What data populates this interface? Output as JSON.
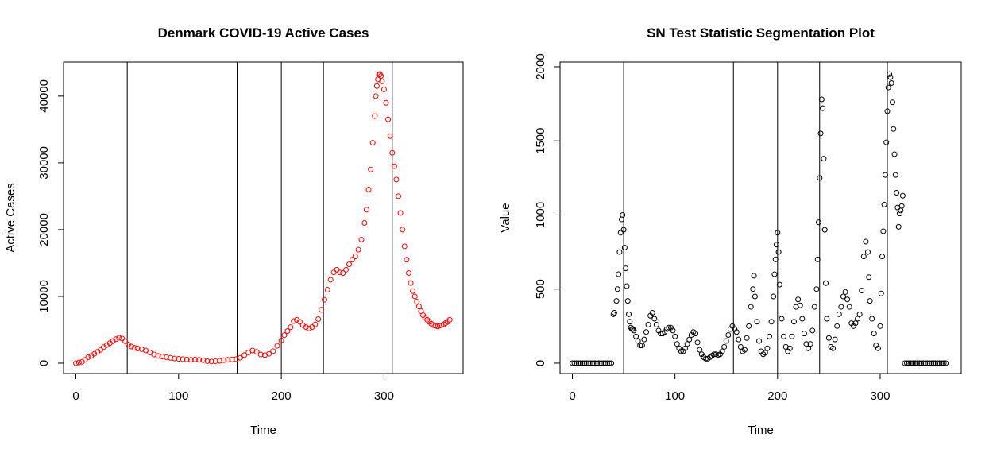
{
  "chart_data": [
    {
      "type": "scatter",
      "title": "Denmark COVID-19 Active Cases",
      "x_label": "Time",
      "y_label": "Active Cases",
      "color": "#ff0000",
      "xlim": [
        -12,
        377
      ],
      "ylim": [
        -1550,
        45100
      ],
      "xticks": [
        0,
        100,
        200,
        300
      ],
      "yticks": [
        0,
        10000,
        20000,
        30000,
        40000
      ],
      "changepoints": [
        50,
        157,
        200,
        241,
        308
      ],
      "x": [
        0,
        3,
        6,
        9,
        12,
        15,
        18,
        21,
        24,
        27,
        30,
        33,
        36,
        39,
        42,
        45,
        48,
        51,
        54,
        57,
        60,
        64,
        68,
        72,
        76,
        80,
        84,
        88,
        92,
        96,
        100,
        104,
        108,
        112,
        116,
        120,
        124,
        128,
        132,
        136,
        140,
        144,
        148,
        152,
        156,
        160,
        164,
        168,
        172,
        176,
        180,
        184,
        188,
        192,
        196,
        200,
        203,
        206,
        209,
        212,
        215,
        218,
        221,
        224,
        227,
        230,
        233,
        236,
        239,
        242,
        245,
        248,
        251,
        254,
        257,
        260,
        263,
        266,
        269,
        272,
        275,
        278,
        281,
        283,
        285,
        287,
        289,
        291,
        292,
        293,
        294,
        295,
        296,
        297,
        298,
        300,
        302,
        304,
        306,
        308,
        310,
        312,
        314,
        316,
        318,
        320,
        322,
        324,
        326,
        328,
        330,
        332,
        334,
        336,
        338,
        340,
        342,
        344,
        346,
        348,
        350,
        352,
        354,
        356,
        358,
        360,
        362,
        364
      ],
      "values": [
        0,
        100,
        200,
        500,
        900,
        1100,
        1400,
        1700,
        2000,
        2400,
        2700,
        3000,
        3300,
        3600,
        3800,
        3700,
        3300,
        2800,
        2500,
        2300,
        2200,
        2100,
        1900,
        1600,
        1300,
        1100,
        1000,
        900,
        800,
        700,
        650,
        600,
        550,
        500,
        550,
        500,
        450,
        300,
        250,
        300,
        350,
        450,
        500,
        550,
        600,
        800,
        1200,
        1600,
        1900,
        1700,
        1300,
        1200,
        1400,
        1800,
        2600,
        3400,
        4200,
        4800,
        5400,
        6300,
        6500,
        6200,
        5700,
        5400,
        5200,
        5400,
        5800,
        6600,
        8000,
        9500,
        11000,
        12500,
        13600,
        14000,
        13600,
        13500,
        14000,
        14800,
        15500,
        16000,
        17000,
        18500,
        21000,
        23000,
        26000,
        29000,
        33000,
        37000,
        40000,
        41500,
        42500,
        43200,
        43300,
        43000,
        42200,
        41000,
        39000,
        36500,
        34000,
        31500,
        29500,
        27500,
        25000,
        22500,
        20000,
        17500,
        15500,
        13500,
        12000,
        10800,
        10000,
        9200,
        8500,
        7800,
        7200,
        6800,
        6500,
        6200,
        5900,
        5700,
        5600,
        5500,
        5600,
        5700,
        5800,
        6000,
        6200,
        6500
      ]
    },
    {
      "type": "scatter",
      "title": "SN Test Statistic Segmentation Plot",
      "x_label": "Time",
      "y_label": "Value",
      "color": "#000000",
      "xlim": [
        -12,
        379
      ],
      "ylim": [
        -70,
        2032
      ],
      "xticks": [
        0,
        100,
        200,
        300
      ],
      "yticks": [
        0,
        500,
        1000,
        1500,
        2000
      ],
      "changepoints": [
        50,
        157,
        200,
        241,
        307
      ],
      "x": [
        0,
        2,
        4,
        6,
        8,
        10,
        12,
        14,
        16,
        18,
        20,
        22,
        24,
        26,
        28,
        30,
        32,
        34,
        36,
        38,
        40,
        41,
        43,
        44,
        45,
        46,
        47,
        48,
        49,
        50,
        51,
        52,
        53,
        54,
        55,
        56,
        57,
        58,
        59,
        60,
        62,
        64,
        66,
        68,
        70,
        72,
        74,
        76,
        78,
        80,
        82,
        84,
        86,
        88,
        90,
        92,
        94,
        96,
        98,
        100,
        102,
        104,
        106,
        108,
        110,
        112,
        114,
        116,
        118,
        120,
        122,
        124,
        126,
        128,
        130,
        132,
        134,
        136,
        138,
        140,
        142,
        144,
        146,
        148,
        150,
        152,
        154,
        156,
        158,
        160,
        162,
        164,
        166,
        168,
        170,
        172,
        174,
        176,
        177,
        178,
        180,
        182,
        184,
        186,
        188,
        190,
        192,
        194,
        196,
        197,
        198,
        199,
        200,
        201,
        202,
        204,
        206,
        208,
        210,
        212,
        214,
        216,
        218,
        220,
        222,
        224,
        226,
        228,
        230,
        232,
        234,
        236,
        238,
        239,
        240,
        241,
        242,
        243,
        244,
        245,
        246,
        247,
        248,
        250,
        252,
        254,
        256,
        258,
        260,
        262,
        264,
        266,
        268,
        270,
        272,
        274,
        276,
        278,
        280,
        282,
        284,
        286,
        288,
        289,
        290,
        292,
        294,
        296,
        298,
        300,
        301,
        302,
        303,
        304,
        305,
        306,
        307,
        308,
        309,
        310,
        311,
        312,
        313,
        314,
        315,
        316,
        317,
        318,
        319,
        320,
        321,
        322,
        324,
        326,
        328,
        330,
        332,
        334,
        336,
        338,
        340,
        342,
        344,
        346,
        348,
        350,
        352,
        354,
        356,
        358,
        360,
        362,
        364
      ],
      "values": [
        0,
        0,
        0,
        0,
        0,
        0,
        0,
        0,
        0,
        0,
        0,
        0,
        0,
        0,
        0,
        0,
        0,
        0,
        0,
        0,
        330,
        340,
        420,
        500,
        600,
        750,
        880,
        970,
        1000,
        900,
        780,
        640,
        520,
        420,
        330,
        280,
        240,
        230,
        230,
        220,
        180,
        150,
        120,
        120,
        160,
        210,
        260,
        320,
        340,
        300,
        260,
        220,
        200,
        200,
        210,
        230,
        240,
        240,
        220,
        180,
        130,
        100,
        80,
        80,
        100,
        130,
        160,
        190,
        210,
        200,
        140,
        90,
        60,
        40,
        30,
        30,
        40,
        50,
        60,
        60,
        55,
        60,
        80,
        110,
        150,
        190,
        230,
        250,
        230,
        210,
        160,
        110,
        80,
        90,
        170,
        250,
        380,
        500,
        590,
        450,
        280,
        150,
        80,
        60,
        70,
        100,
        180,
        280,
        450,
        600,
        700,
        800,
        880,
        750,
        530,
        300,
        180,
        110,
        80,
        100,
        180,
        280,
        380,
        430,
        390,
        300,
        200,
        130,
        100,
        130,
        220,
        380,
        500,
        700,
        950,
        1250,
        1550,
        1780,
        1720,
        1380,
        900,
        540,
        300,
        170,
        110,
        100,
        160,
        250,
        330,
        380,
        450,
        480,
        430,
        380,
        270,
        250,
        270,
        300,
        330,
        490,
        720,
        820,
        750,
        580,
        420,
        300,
        200,
        120,
        100,
        250,
        470,
        720,
        890,
        1070,
        1270,
        1490,
        1700,
        1860,
        1950,
        1930,
        1890,
        1760,
        1580,
        1410,
        1270,
        1150,
        1050,
        920,
        1010,
        1030,
        1060,
        1130,
        0,
        0,
        0,
        0,
        0,
        0,
        0,
        0,
        0,
        0,
        0,
        0,
        0,
        0,
        0,
        0,
        0,
        0,
        0,
        0,
        0
      ]
    }
  ]
}
